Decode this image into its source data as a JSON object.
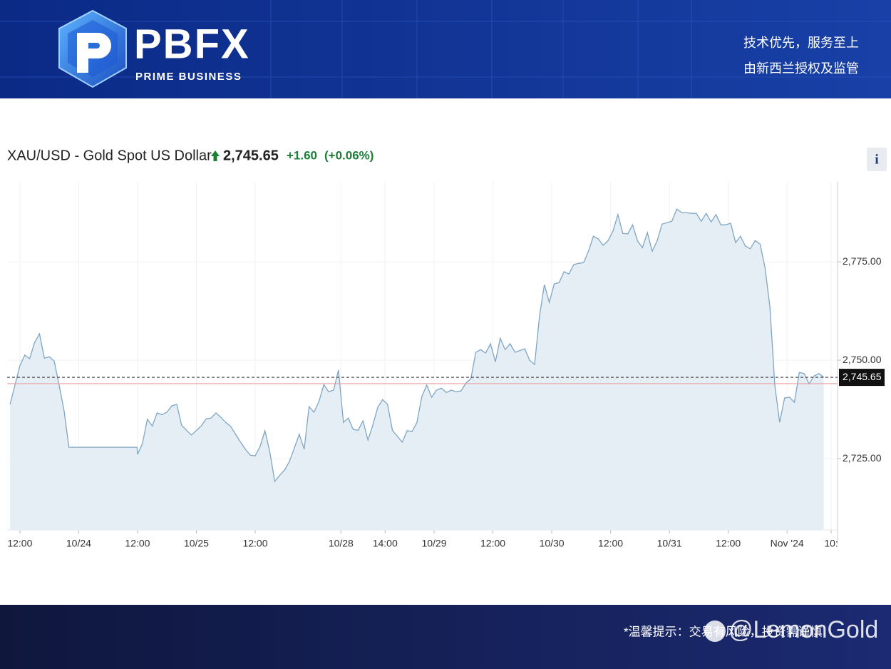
{
  "header": {
    "brand": "PBFX",
    "tagline": "PRIME BUSINESS",
    "slogan": "技术优先，服务至上",
    "license": "由新西兰授权及监管"
  },
  "footer": {
    "notice": "*温馨提示：交易有风险，投资需谨慎",
    "watermark": "@LemonGold"
  },
  "info_button": "i",
  "chart_data": {
    "type": "area",
    "title": "XAU/USD - Gold Spot US Dollar",
    "last_price": {
      "value": 2745.65,
      "label": "2,745.65"
    },
    "change": {
      "value": 1.6,
      "label": "+1.60"
    },
    "change_pct": {
      "value": 0.06,
      "label": "(+0.06%)"
    },
    "previous_close": 2744.05,
    "color": "#7ea6c4",
    "fill_color": "#e6eef5",
    "grid": true,
    "xlim": [
      9.4,
      178.8
    ],
    "ylim": [
      2706.9,
      2795.3
    ],
    "yticks": [
      {
        "value": 2725,
        "label": "2,725.00"
      },
      {
        "value": 2750,
        "label": "2,750.00"
      },
      {
        "value": 2775,
        "label": "2,775.00"
      }
    ],
    "xticks": [
      {
        "value": 12,
        "label": "12:00"
      },
      {
        "value": 24,
        "label": "10/24"
      },
      {
        "value": 36,
        "label": "12:00"
      },
      {
        "value": 48,
        "label": "10/25"
      },
      {
        "value": 60,
        "label": "12:00"
      },
      {
        "value": 77.5,
        "label": "10/28"
      },
      {
        "value": 86.5,
        "label": "14:00"
      },
      {
        "value": 96.5,
        "label": "10/29"
      },
      {
        "value": 108.5,
        "label": "12:00"
      },
      {
        "value": 120.5,
        "label": "10/30"
      },
      {
        "value": 132.5,
        "label": "12:00"
      },
      {
        "value": 144.5,
        "label": "10/31"
      },
      {
        "value": 156.5,
        "label": "12:00"
      },
      {
        "value": 168.5,
        "label": "Nov '24"
      },
      {
        "value": 177.5,
        "label": "10:"
      }
    ],
    "x": [
      10,
      11,
      12,
      13,
      14,
      15,
      16,
      17,
      18,
      19,
      20,
      21,
      22,
      35.9,
      36,
      37,
      38,
      39,
      40,
      41,
      42,
      43,
      44,
      45,
      46,
      47,
      49,
      50,
      51,
      52,
      53,
      54,
      55,
      56,
      57,
      58,
      59,
      60,
      61,
      62,
      63,
      64,
      65,
      66,
      67,
      69,
      70,
      71,
      72,
      73,
      74,
      75,
      76,
      77,
      78,
      79,
      80,
      81,
      82,
      83,
      84,
      85,
      86,
      87,
      88,
      90,
      91,
      92,
      93,
      94,
      95,
      96,
      97,
      98,
      99,
      100,
      101,
      102,
      103,
      104,
      105,
      106,
      107,
      108,
      109,
      110,
      111,
      112,
      113,
      115,
      116,
      117,
      118,
      119,
      120,
      121,
      122,
      123,
      124,
      125,
      126,
      127,
      128,
      129,
      130,
      131,
      132,
      133,
      134,
      135,
      136,
      137,
      138,
      139,
      140,
      141,
      142,
      143,
      145,
      146,
      147,
      148,
      149,
      150,
      151,
      152,
      153,
      154,
      155,
      156,
      157,
      158,
      159,
      160,
      161,
      162,
      163,
      164,
      165,
      166,
      167,
      168,
      169,
      170,
      171,
      172,
      173,
      174,
      175,
      176
    ],
    "values": [
      2738.8,
      2743.7,
      2748.6,
      2751.3,
      2750.4,
      2754.5,
      2756.7,
      2750.5,
      2750.9,
      2749.8,
      2743.7,
      2737.3,
      2727.9,
      2727.9,
      2726.1,
      2728.8,
      2735.0,
      2733.3,
      2736.6,
      2736.2,
      2736.8,
      2738.4,
      2738.8,
      2733.5,
      2732.2,
      2731.0,
      2733.3,
      2735.1,
      2735.3,
      2736.6,
      2735.5,
      2734.2,
      2733.2,
      2731.2,
      2729.2,
      2727.4,
      2725.9,
      2725.7,
      2728.1,
      2732.1,
      2726.6,
      2719.2,
      2720.8,
      2722.1,
      2724.3,
      2731.2,
      2727.4,
      2738.2,
      2736.8,
      2739.5,
      2743.8,
      2742.0,
      2742.4,
      2747.5,
      2734.2,
      2735.3,
      2732.4,
      2732.2,
      2734.6,
      2729.7,
      2733.5,
      2738.0,
      2740.0,
      2738.8,
      2732.2,
      2729.2,
      2732.1,
      2731.9,
      2734.2,
      2740.8,
      2743.7,
      2740.6,
      2742.4,
      2742.9,
      2741.8,
      2742.4,
      2742.0,
      2742.2,
      2744.2,
      2745.3,
      2752.0,
      2752.7,
      2751.8,
      2754.2,
      2749.6,
      2755.6,
      2752.7,
      2754.2,
      2752.0,
      2752.9,
      2750.0,
      2748.9,
      2761.2,
      2769.2,
      2764.7,
      2769.4,
      2769.7,
      2772.5,
      2771.9,
      2774.3,
      2774.6,
      2774.8,
      2777.7,
      2781.5,
      2780.8,
      2779.2,
      2780.4,
      2782.8,
      2787.0,
      2782.2,
      2782.1,
      2784.4,
      2780.3,
      2778.6,
      2782.4,
      2777.7,
      2780.3,
      2784.6,
      2785.3,
      2788.4,
      2787.5,
      2787.5,
      2787.3,
      2787.3,
      2785.3,
      2787.3,
      2785.1,
      2787.0,
      2784.4,
      2784.4,
      2784.8,
      2779.9,
      2781.5,
      2779.0,
      2778.3,
      2780.4,
      2779.5,
      2773.6,
      2763.6,
      2743.7,
      2734.2,
      2740.4,
      2740.6,
      2739.3,
      2746.9,
      2746.6,
      2744.0,
      2746.0,
      2746.6,
      2745.7
    ]
  }
}
